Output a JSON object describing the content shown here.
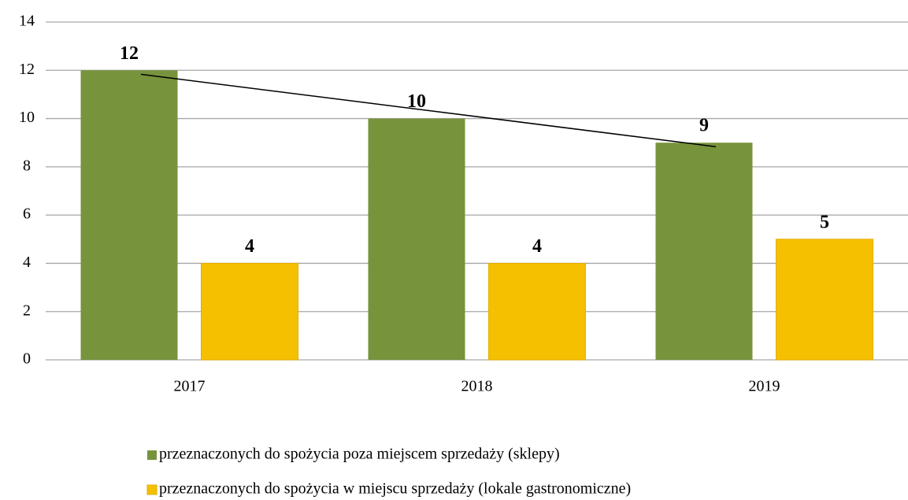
{
  "chart_data": {
    "type": "bar",
    "categories": [
      "2017",
      "2018",
      "2019"
    ],
    "series": [
      {
        "name": "przeznaczonych do spożycia poza miejscem sprzedaży (sklepy)",
        "color": "#77933c",
        "values": [
          12,
          10,
          9
        ],
        "trendline": "linear"
      },
      {
        "name": "przeznaczonych do spożycia w miejscu sprzedaży (lokale gastronomiczne)",
        "color": "#f5c000",
        "values": [
          4,
          4,
          5
        ]
      }
    ],
    "ylim": [
      0,
      14
    ],
    "yticks": [
      0,
      2,
      4,
      6,
      8,
      10,
      12,
      14
    ],
    "grid": true,
    "legend": "bottom",
    "data_labels": true
  }
}
